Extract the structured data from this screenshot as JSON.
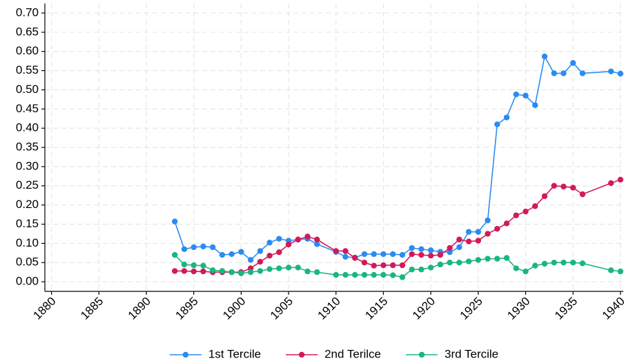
{
  "chart_data": {
    "type": "line",
    "x": [
      1893,
      1894,
      1895,
      1896,
      1897,
      1898,
      1899,
      1900,
      1901,
      1902,
      1903,
      1904,
      1905,
      1906,
      1907,
      1908,
      1910,
      1911,
      1912,
      1913,
      1914,
      1915,
      1916,
      1917,
      1918,
      1919,
      1920,
      1921,
      1922,
      1923,
      1924,
      1925,
      1926,
      1927,
      1928,
      1929,
      1930,
      1931,
      1932,
      1933,
      1934,
      1935,
      1936,
      1939,
      1940
    ],
    "series": [
      {
        "name": "1st Tercile",
        "color": "#2a8cf0",
        "values": [
          0.157,
          0.085,
          0.09,
          0.092,
          0.09,
          0.07,
          0.072,
          0.078,
          0.057,
          0.08,
          0.102,
          0.112,
          0.107,
          0.11,
          0.112,
          0.098,
          0.078,
          0.065,
          0.063,
          0.072,
          0.072,
          0.072,
          0.072,
          0.07,
          0.088,
          0.085,
          0.082,
          0.078,
          0.077,
          0.09,
          0.13,
          0.13,
          0.16,
          0.41,
          0.428,
          0.488,
          0.485,
          0.46,
          0.587,
          0.543,
          0.543,
          0.57,
          0.543,
          0.548,
          0.542
        ]
      },
      {
        "name": "2nd Terilce",
        "color": "#d21a5a",
        "values": [
          0.028,
          0.028,
          0.027,
          0.027,
          0.025,
          0.025,
          0.025,
          0.025,
          0.035,
          0.052,
          0.068,
          0.077,
          0.097,
          0.11,
          0.118,
          0.11,
          0.08,
          0.08,
          0.062,
          0.05,
          0.042,
          0.043,
          0.043,
          0.043,
          0.072,
          0.07,
          0.068,
          0.07,
          0.088,
          0.11,
          0.105,
          0.107,
          0.125,
          0.138,
          0.152,
          0.173,
          0.183,
          0.197,
          0.223,
          0.25,
          0.248,
          0.245,
          0.228,
          0.257,
          0.266
        ]
      },
      {
        "name": "3rd Tercile",
        "color": "#1ab67e",
        "values": [
          0.07,
          0.045,
          0.043,
          0.042,
          0.03,
          0.028,
          0.025,
          0.022,
          0.025,
          0.028,
          0.033,
          0.035,
          0.037,
          0.037,
          0.027,
          0.025,
          0.018,
          0.018,
          0.018,
          0.018,
          0.018,
          0.018,
          0.017,
          0.012,
          0.032,
          0.032,
          0.037,
          0.045,
          0.05,
          0.05,
          0.053,
          0.057,
          0.06,
          0.06,
          0.062,
          0.035,
          0.027,
          0.042,
          0.047,
          0.05,
          0.05,
          0.05,
          0.048,
          0.03,
          0.027
        ]
      }
    ],
    "xlim": [
      1879.3,
      1940.3
    ],
    "xticks": [
      1880,
      1885,
      1890,
      1895,
      1900,
      1905,
      1910,
      1915,
      1920,
      1925,
      1930,
      1935,
      1940
    ],
    "ylim": [
      -0.025,
      0.725
    ],
    "yticks": [
      {
        "value": 0,
        "label": "0.00"
      },
      {
        "value": 0.05,
        "label": "0.05"
      },
      {
        "value": 0.1,
        "label": "0.10"
      },
      {
        "value": 0.15,
        "label": "0.15"
      },
      {
        "value": 0.2,
        "label": "0.20"
      },
      {
        "value": 0.25,
        "label": "0.25"
      },
      {
        "value": 0.3,
        "label": "0.30"
      },
      {
        "value": 0.35,
        "label": "0.35"
      },
      {
        "value": 0.4,
        "label": "0.40"
      },
      {
        "value": 0.45,
        "label": "0.45"
      },
      {
        "value": 0.5,
        "label": "0.50"
      },
      {
        "value": 0.55,
        "label": "0.55"
      },
      {
        "value": 0.6,
        "label": "0.60"
      },
      {
        "value": 0.65,
        "label": "0.65"
      },
      {
        "value": 0.7,
        "label": "0.70"
      }
    ],
    "grid": true,
    "legend": "bottom"
  }
}
